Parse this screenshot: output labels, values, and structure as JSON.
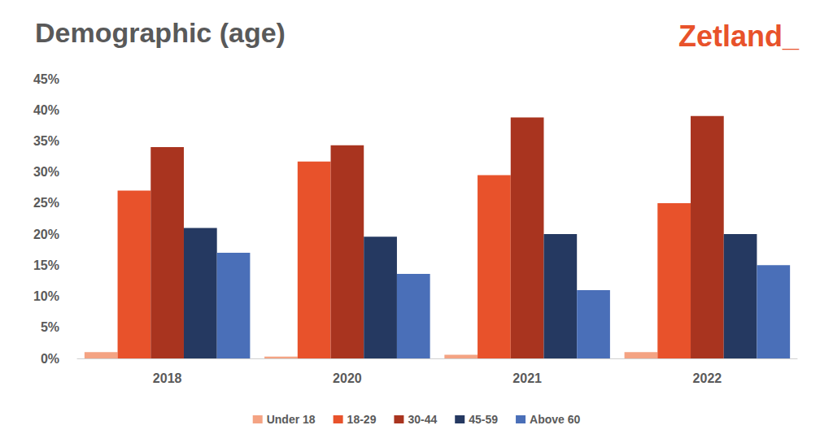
{
  "chart_data": {
    "type": "bar",
    "title": "Demographic (age)",
    "annotations": [
      "Zetland_"
    ],
    "categories": [
      "2018",
      "2020",
      "2021",
      "2022"
    ],
    "series": [
      {
        "name": "Under 18",
        "color": "#f4a383",
        "values": [
          1,
          0.3,
          0.6,
          1
        ]
      },
      {
        "name": "18-29",
        "color": "#e8522b",
        "values": [
          27,
          31.7,
          29.5,
          25
        ]
      },
      {
        "name": "30-44",
        "color": "#a9341f",
        "values": [
          34,
          34.3,
          38.8,
          39
        ]
      },
      {
        "name": "45-59",
        "color": "#253961",
        "values": [
          21,
          19.6,
          20,
          20
        ]
      },
      {
        "name": "Above 60",
        "color": "#4a6fb8",
        "values": [
          17,
          13.6,
          11,
          15
        ]
      }
    ],
    "ylim": [
      0,
      45
    ],
    "yticks": [
      {
        "value": 0,
        "label": "0%"
      },
      {
        "value": 5,
        "label": "5%"
      },
      {
        "value": 10,
        "label": "10%"
      },
      {
        "value": 15,
        "label": "15%"
      },
      {
        "value": 20,
        "label": "20%"
      },
      {
        "value": 25,
        "label": "25%"
      },
      {
        "value": 30,
        "label": "30%"
      },
      {
        "value": 35,
        "label": "35%"
      },
      {
        "value": 40,
        "label": "40%"
      },
      {
        "value": 45,
        "label": "45%"
      }
    ],
    "grid": false,
    "legend": "bottom"
  }
}
